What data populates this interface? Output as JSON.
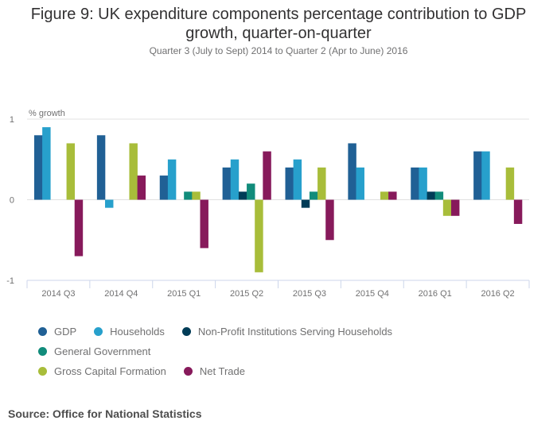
{
  "chart_data": {
    "type": "bar",
    "title": "Figure 9: UK expenditure components percentage contribution to GDP growth, quarter-on-quarter",
    "subtitle": "Quarter 3 (July to Sept) 2014 to Quarter 2 (Apr to June) 2016",
    "xlabel": "",
    "ylabel": "% growth",
    "ylim": [
      -1,
      1
    ],
    "yticks": [
      1,
      0,
      -1
    ],
    "grid": true,
    "legend_position": "bottom",
    "categories": [
      "2014 Q3",
      "2014 Q4",
      "2015 Q1",
      "2015 Q2",
      "2015 Q3",
      "2015 Q4",
      "2016 Q1",
      "2016 Q2"
    ],
    "series": [
      {
        "name": "GDP",
        "color": "#206095",
        "values": [
          0.8,
          0.8,
          0.3,
          0.4,
          0.4,
          0.7,
          0.4,
          0.6
        ]
      },
      {
        "name": "Households",
        "color": "#27a0cc",
        "values": [
          0.9,
          -0.1,
          0.5,
          0.5,
          0.5,
          0.4,
          0.4,
          0.6
        ]
      },
      {
        "name": "Non-Profit Institutions Serving Households",
        "color": "#003c57",
        "values": [
          0,
          0,
          0,
          0.1,
          -0.1,
          0,
          0.1,
          0
        ]
      },
      {
        "name": "General Government",
        "color": "#118c7b",
        "values": [
          0,
          0,
          0.1,
          0.2,
          0.1,
          0,
          0.1,
          0
        ]
      },
      {
        "name": "Gross Capital Formation",
        "color": "#a8bd3a",
        "values": [
          0.7,
          0.7,
          0.1,
          -0.9,
          0.4,
          0.1,
          -0.2,
          0.4
        ]
      },
      {
        "name": "Net Trade",
        "color": "#871a5b",
        "values": [
          -0.7,
          0.3,
          -0.6,
          0.6,
          -0.5,
          0.1,
          -0.2,
          -0.3
        ]
      }
    ]
  },
  "title_line1": "Figure 9: UK expenditure components percentage contribution to GDP",
  "title_line2": "growth, quarter-on-quarter",
  "subtitle": "Quarter 3 (July to Sept) 2014 to Quarter 2 (Apr to June) 2016",
  "source": "Source: Office for National Statistics"
}
